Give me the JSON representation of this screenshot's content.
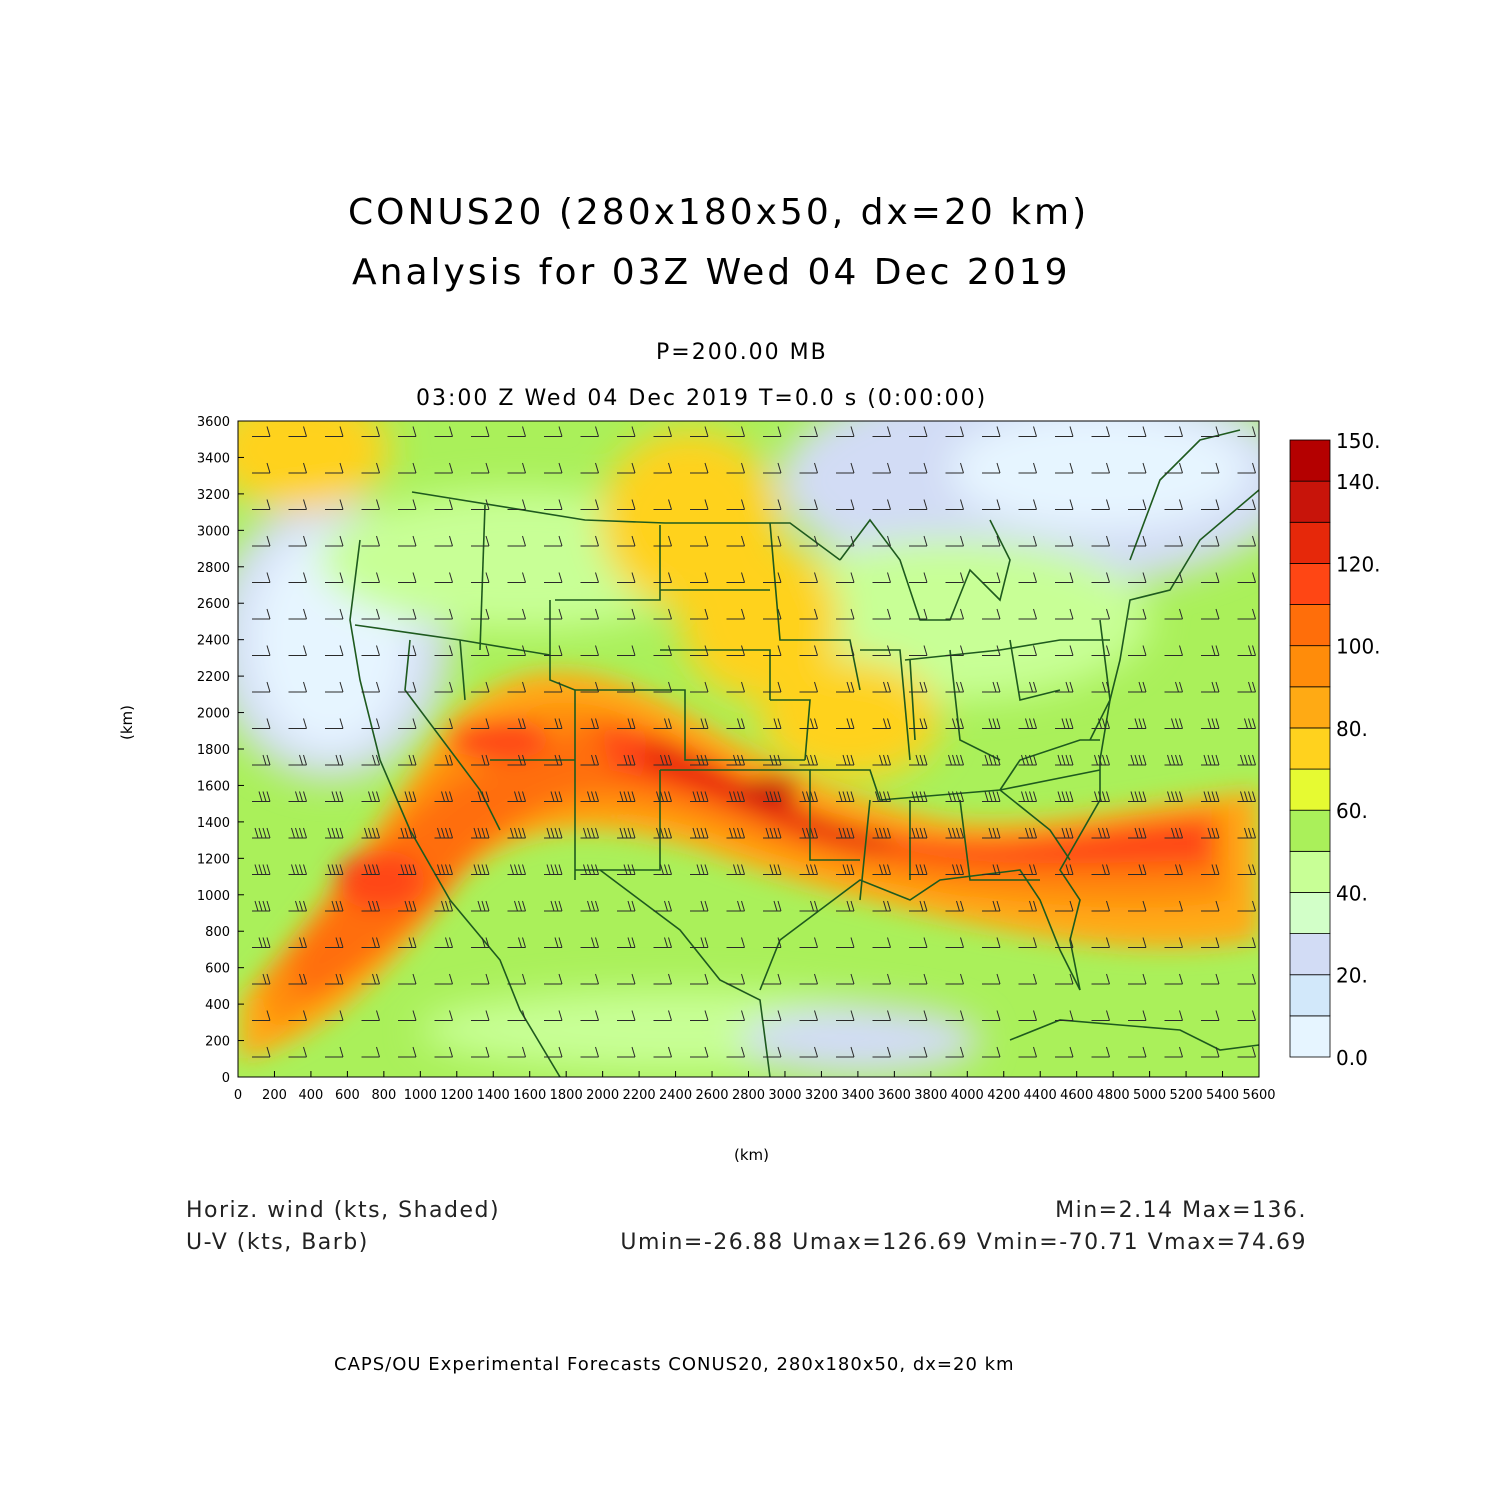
{
  "header": {
    "title_line1": "CONUS20 (280x180x50, dx=20 km)",
    "title_line2": "Analysis for 03Z Wed 04 Dec 2019",
    "level": "P=200.00 MB",
    "valid_time": "03:00 Z Wed 04 Dec 2019    T=0.0 s (0:00:00)"
  },
  "axes": {
    "x_label": "(km)",
    "y_label": "(km)",
    "x_range": [
      0,
      5600
    ],
    "y_range": [
      0,
      3600
    ],
    "x_ticks": [
      "0",
      "200",
      "400",
      "600",
      "800",
      "1000",
      "1200",
      "1400",
      "1600",
      "1800",
      "2000",
      "2200",
      "2400",
      "2600",
      "2800",
      "3000",
      "3200",
      "3400",
      "3600",
      "3800",
      "4000",
      "4200",
      "4400",
      "4600",
      "4800",
      "5000",
      "5200",
      "5400",
      "5600"
    ],
    "y_ticks": [
      "0",
      "200",
      "400",
      "600",
      "800",
      "1000",
      "1200",
      "1400",
      "1600",
      "1800",
      "2000",
      "2200",
      "2400",
      "2600",
      "2800",
      "3000",
      "3200",
      "3400",
      "3600"
    ]
  },
  "colorbar": {
    "labels": [
      "0.0",
      "20.",
      "40.",
      "60.",
      "80.",
      "100.",
      "120.",
      "140.",
      "150."
    ],
    "levels": [
      0,
      10,
      20,
      30,
      40,
      50,
      60,
      70,
      80,
      90,
      100,
      110,
      120,
      130,
      140,
      150
    ],
    "colors": [
      "#e6f5ff",
      "#d2e8fa",
      "#d2dcf5",
      "#d2ffc8",
      "#c8ff96",
      "#aaf05a",
      "#e6fa32",
      "#ffd21e",
      "#ffaa14",
      "#ff8c0a",
      "#ff6e0a",
      "#ff4614",
      "#e6280a",
      "#c8140a",
      "#b40000"
    ]
  },
  "legend": {
    "field1": "Horiz. wind (kts, Shaded)",
    "field2": "U-V (kts, Barb)",
    "minmax": "Min=2.14 Max=136.",
    "uv_stats": "Umin=-26.88 Umax=126.69 Vmin=-70.71 Vmax=74.69"
  },
  "footer": "CAPS/OU Experimental Forecasts  CONUS20, 280x180x50, dx=20 km"
}
